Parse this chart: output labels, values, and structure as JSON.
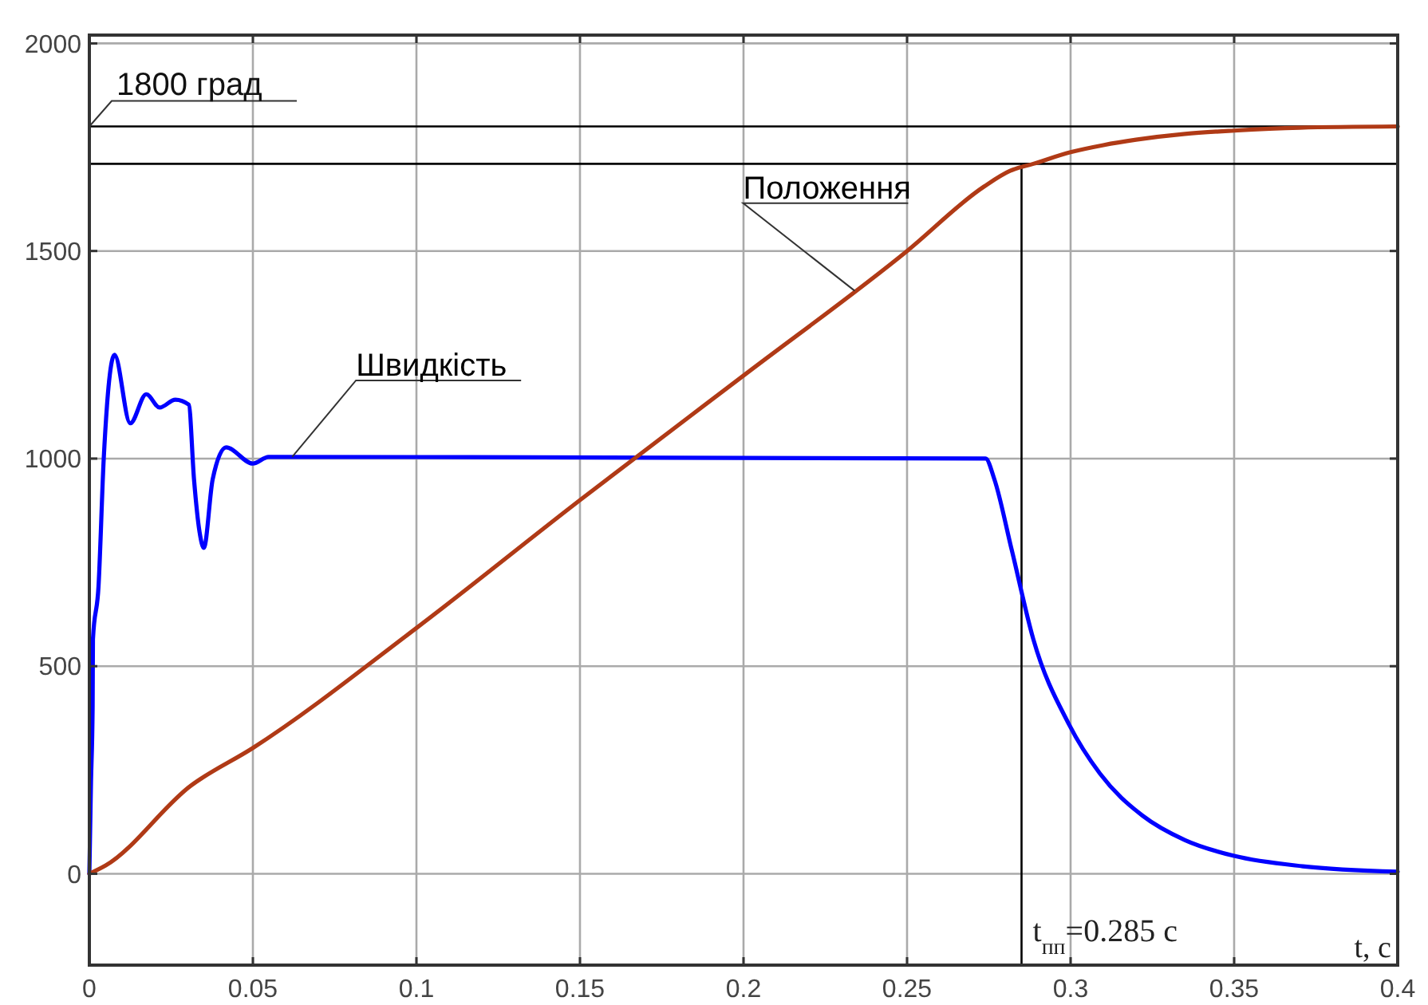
{
  "chart_data": {
    "type": "line",
    "xlabel": "t, с",
    "xlim": [
      0,
      0.4
    ],
    "xticks": [
      0,
      0.05,
      0.1,
      0.15,
      0.2,
      0.25,
      0.3,
      0.35,
      0.4
    ],
    "ylim": [
      -220,
      2020
    ],
    "yticks": [
      0,
      500,
      1000,
      1500,
      2000
    ],
    "grid": true,
    "marker": "none",
    "line_style": "solid",
    "series": [
      {
        "name": "Швидкість",
        "color": "#0000ff",
        "x": [
          0,
          0.0005,
          0.001,
          0.0011,
          0.0028,
          0.0044,
          0.0077,
          0.0125,
          0.0174,
          0.0215,
          0.0263,
          0.0304,
          0.032,
          0.0337,
          0.035,
          0.0377,
          0.0418,
          0.05,
          0.0548,
          0.274,
          0.2767,
          0.282,
          0.2886,
          0.2995,
          0.309,
          0.322,
          0.335,
          0.35,
          0.371,
          0.4
        ],
        "values": [
          0,
          220,
          400,
          565,
          692,
          1000,
          1250,
          1085,
          1155,
          1123,
          1142,
          1130,
          950,
          823,
          785,
          950,
          1027,
          988,
          1004,
          1000,
          950,
          780,
          565,
          360,
          241,
          140,
          81,
          43,
          18,
          5
        ]
      },
      {
        "name": "Положення",
        "color": "#b03a16",
        "x": [
          0,
          0.005,
          0.031,
          0.05,
          0.1,
          0.15,
          0.2,
          0.25,
          0.2735,
          0.2815,
          0.2886,
          0.3,
          0.31,
          0.32,
          0.335,
          0.35,
          0.37,
          0.4
        ],
        "values": [
          0,
          20,
          212,
          303,
          592,
          900,
          1200,
          1500,
          1655,
          1693,
          1710,
          1738,
          1755,
          1768,
          1782,
          1790,
          1797,
          1800
        ]
      }
    ],
    "ref_lines": [
      {
        "axis": "y",
        "value": 1800,
        "label": "1800 град",
        "color": "#000000"
      },
      {
        "axis": "y",
        "value": 1710,
        "label": null,
        "color": "#000000"
      },
      {
        "axis": "x",
        "value": 0.285,
        "label": "t$_{пп}$=0.285 с",
        "color": "#000000"
      }
    ]
  }
}
